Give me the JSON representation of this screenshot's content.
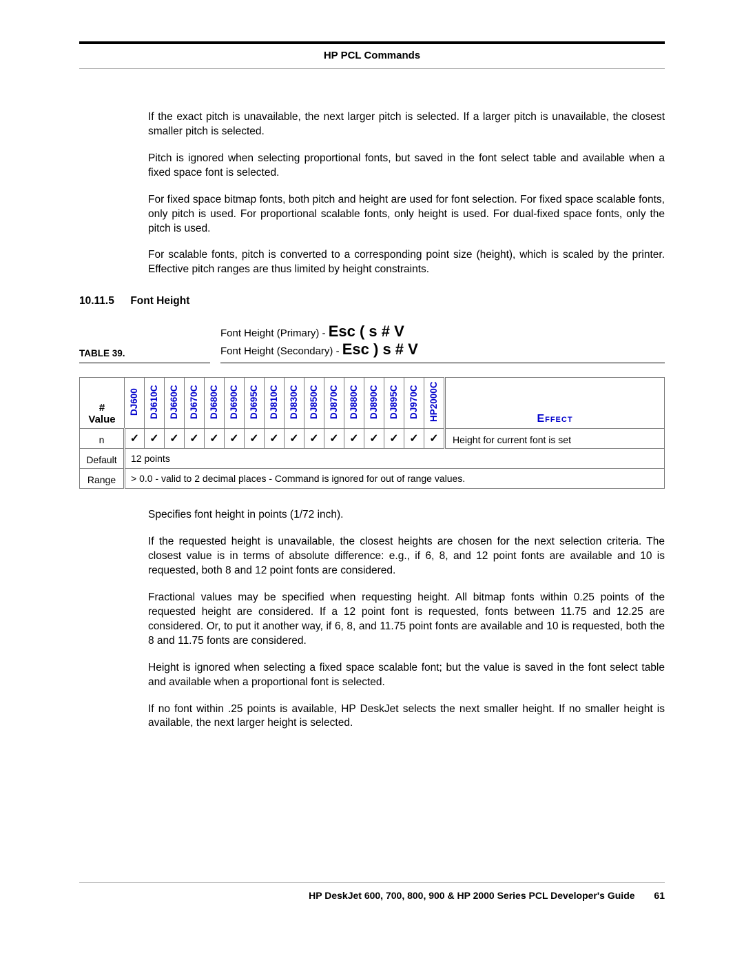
{
  "header": {
    "title": "HP PCL Commands"
  },
  "intro_paragraphs": [
    "If the exact pitch is unavailable, the next larger pitch is selected. If a larger pitch is unavailable, the closest smaller pitch is selected.",
    "Pitch is ignored when selecting proportional fonts, but saved in the font select table and available when a fixed space font is selected.",
    "For fixed space bitmap fonts, both pitch and height are used for font selection. For fixed space scalable fonts, only pitch is used. For proportional scalable fonts, only height is used. For dual-fixed space fonts, only the pitch is used.",
    "For scalable fonts, pitch is converted to a corresponding point size (height), which is scaled by the printer. Effective pitch ranges are thus limited by height constraints."
  ],
  "section": {
    "number": "10.11.5",
    "title": "Font Height"
  },
  "table": {
    "label": "TABLE 39.",
    "caption1_prefix": "Font Height (Primary) - ",
    "caption1_esc": "Esc ( s # V",
    "caption2_prefix": "Font Height (Secondary) - ",
    "caption2_esc": "Esc ) s # V",
    "value_header": "#\nValue",
    "effect_header": "Effect",
    "models": [
      "DJ600",
      "DJ610C",
      "DJ660C",
      "DJ670C",
      "DJ680C",
      "DJ690C",
      "DJ695C",
      "DJ810C",
      "DJ830C",
      "DJ850C",
      "DJ870C",
      "DJ880C",
      "DJ890C",
      "DJ895C",
      "DJ970C",
      "HP2000C"
    ],
    "rows": [
      {
        "value": "n",
        "checks": true,
        "effect": "Height for current font is set"
      },
      {
        "value": "Default",
        "span_text": "12 points"
      },
      {
        "value": "Range",
        "span_text": "> 0.0 - valid to 2 decimal places - Command is ignored for out of range values."
      }
    ],
    "check_glyph": "✓"
  },
  "after_paragraphs": [
    "Specifies font height in points (1/72 inch).",
    "If the requested height is unavailable, the closest heights are chosen for the next selection criteria. The closest value is in terms of absolute difference: e.g., if 6, 8, and 12 point fonts are available and 10 is requested, both 8 and 12 point fonts are considered.",
    "Fractional values may be specified when requesting height. All bitmap fonts within 0.25 points of the requested height are considered. If a 12 point font is requested, fonts between 11.75 and 12.25 are considered. Or, to put it another way, if 6, 8, and 11.75 point fonts are available and 10 is requested, both the 8 and 11.75 fonts are considered.",
    "Height is ignored when selecting a fixed space scalable font; but the value is saved in the font select table and available when a proportional font is selected.",
    "If no font within .25 points is available, HP DeskJet selects the next smaller height. If no smaller height is available, the next larger height is selected."
  ],
  "footer": {
    "text": "HP DeskJet 600, 700, 800, 900 & HP 2000 Series PCL Developer's Guide",
    "page": "61"
  },
  "colors": {
    "link_blue": "#0000cc"
  }
}
